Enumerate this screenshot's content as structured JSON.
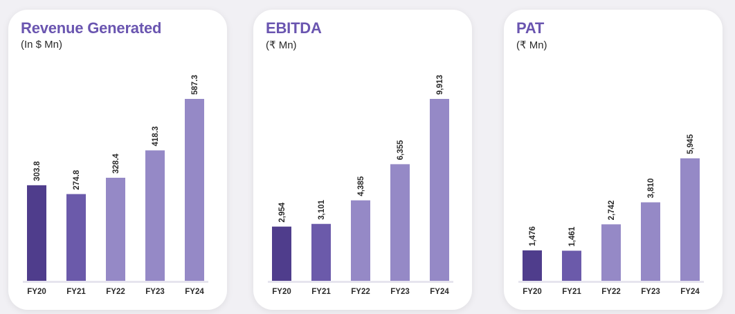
{
  "colors": {
    "title": "#6a55b0",
    "bars": [
      "#4f3d8c",
      "#6b5aaa",
      "#9589c6",
      "#9589c6",
      "#9589c6"
    ]
  },
  "chart_data": [
    {
      "type": "bar",
      "title": "Revenue Generated",
      "subtitle": "(In $ Mn)",
      "categories": [
        "FY20",
        "FY21",
        "FY22",
        "FY23",
        "FY24"
      ],
      "values": [
        303.8,
        274.8,
        328.4,
        418.3,
        587.3
      ],
      "value_labels": [
        "303.8",
        "274.8",
        "328.4",
        "418.3",
        "587.3"
      ],
      "ylim": [
        -10,
        587.3
      ]
    },
    {
      "type": "bar",
      "title": "EBITDA",
      "subtitle": "(₹ Mn)",
      "categories": [
        "FY20",
        "FY21",
        "FY22",
        "FY23",
        "FY24"
      ],
      "values": [
        2954,
        3101,
        4385,
        6355,
        9913
      ],
      "value_labels": [
        "2,954",
        "3,101",
        "4,385",
        "6,355",
        "9,913"
      ],
      "ylim": [
        0,
        9913
      ]
    },
    {
      "type": "bar",
      "title": "PAT",
      "subtitle": "(₹ Mn)",
      "categories": [
        "FY20",
        "FY21",
        "FY22",
        "FY23",
        "FY24"
      ],
      "values": [
        1476,
        1461,
        2742,
        3810,
        5945
      ],
      "value_labels": [
        "1,476",
        "1,461",
        "2,742",
        "3,810",
        "5,945"
      ],
      "ylim": [
        0,
        8830
      ]
    }
  ]
}
